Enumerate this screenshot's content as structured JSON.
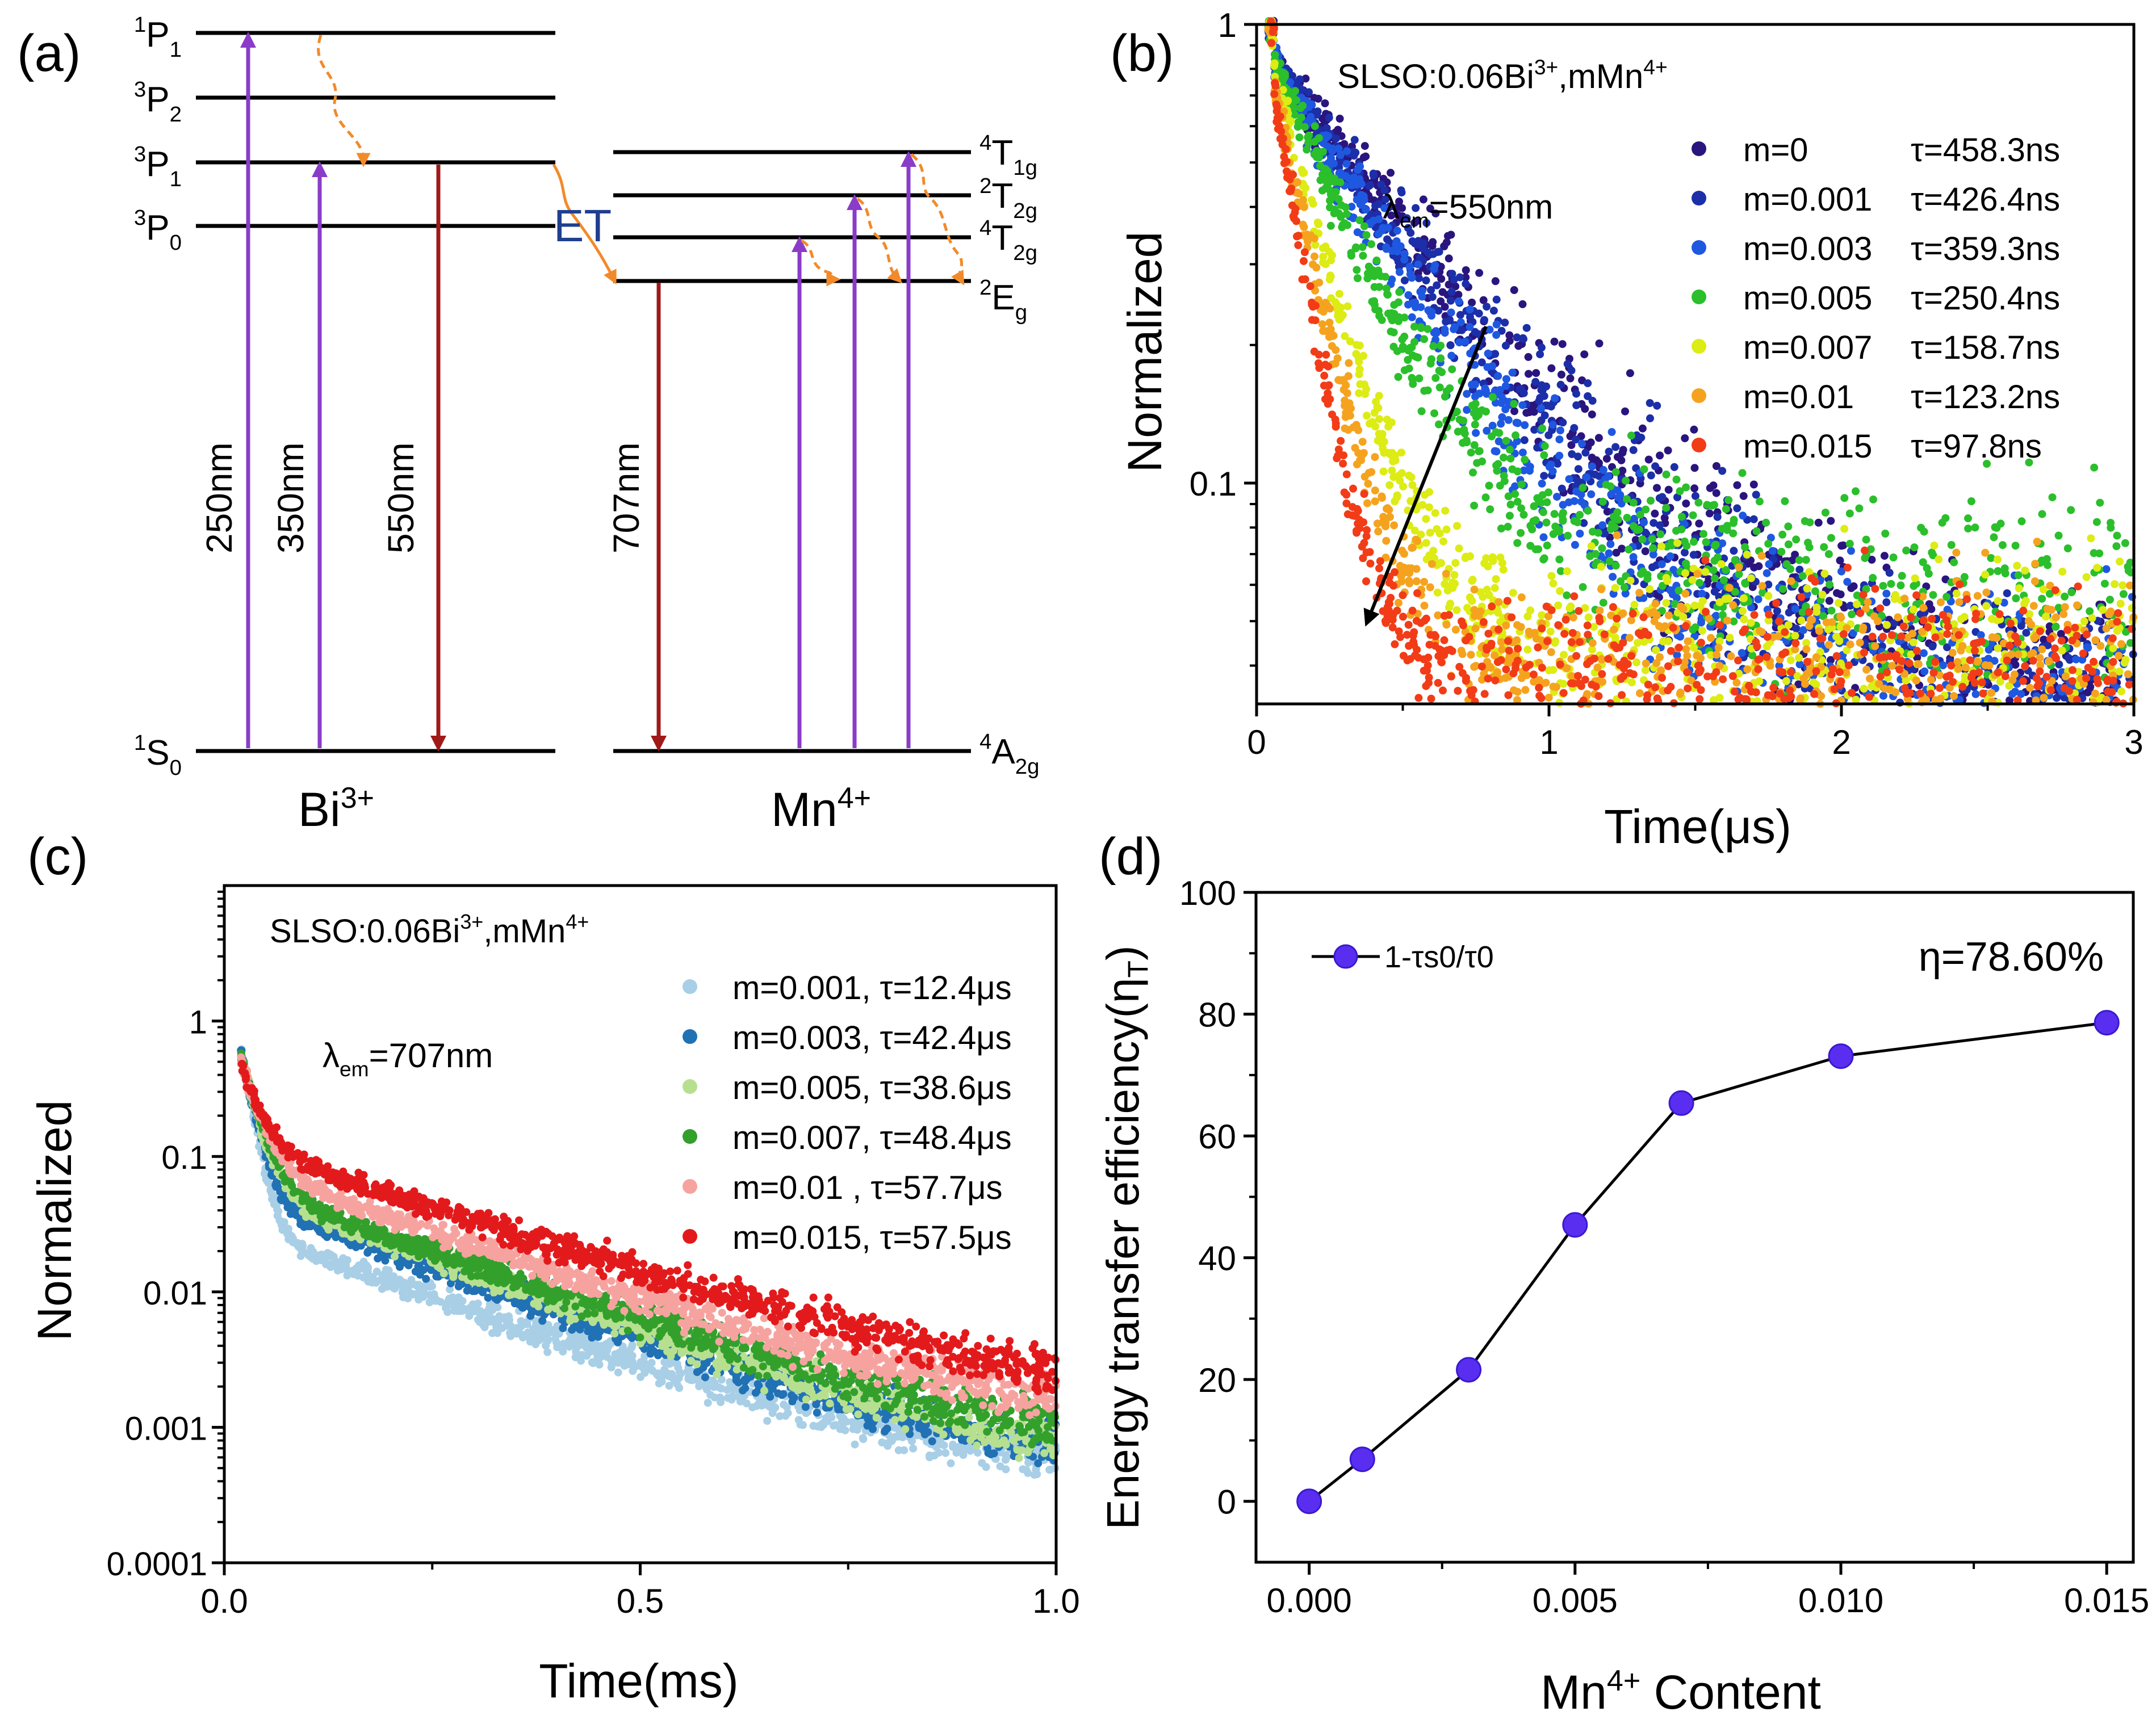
{
  "panel_a": {
    "label": "(a)",
    "bi_levels": [
      {
        "base": "P",
        "sup": "1",
        "sub": "1"
      },
      {
        "base": "P",
        "sup": "3",
        "sub": "2"
      },
      {
        "base": "P",
        "sup": "3",
        "sub": "1"
      },
      {
        "base": "P",
        "sup": "3",
        "sub": "0"
      },
      {
        "base": "S",
        "sup": "1",
        "sub": "0"
      }
    ],
    "mn_levels": [
      {
        "base": "T",
        "sup": "4",
        "sub": "1g"
      },
      {
        "base": "T",
        "sup": "2",
        "sub": "2g"
      },
      {
        "base": "T",
        "sup": "4",
        "sub": "2g"
      },
      {
        "base": "E",
        "sup": "2",
        "sub": "g"
      },
      {
        "base": "A",
        "sup": "4",
        "sub": "2g"
      }
    ],
    "transitions": [
      "250nm",
      "350nm",
      "550nm",
      "707nm"
    ],
    "et_label": "ET",
    "bi_ion": {
      "base": "Bi",
      "sup": "3+"
    },
    "mn_ion": {
      "base": "Mn",
      "sup": "4+"
    },
    "colors": {
      "excitation": "#8a3cc8",
      "emission": "#a01a1a",
      "relax": "#f28a2a",
      "et": "#1f3f8f"
    }
  },
  "chart_data": [
    {
      "panel": "(b)",
      "type": "scatter",
      "title": "SLSO:0.06Bi3+,mMn4+",
      "title_parts": {
        "a": "SLSO:0.06Bi",
        "a_sup": "3+",
        "b": ",mMn",
        "b_sup": "4+"
      },
      "annotation": {
        "prefix": "λ",
        "sub": "em",
        "suffix": "=550nm"
      },
      "xlabel": "Time(μs)",
      "ylabel": "Normalized",
      "xlim": [
        0,
        3
      ],
      "ylim": [
        0.033,
        1
      ],
      "yscale": "log",
      "xticks": [
        "0",
        "1",
        "2",
        "3"
      ],
      "yticks": [
        "1",
        "0.1"
      ],
      "series": [
        {
          "name": "m=0",
          "tau_label": "τ=458.3ns",
          "tau_ns": 458.3,
          "color": "#2a157f"
        },
        {
          "name": "m=0.001",
          "tau_label": "τ=426.4ns",
          "tau_ns": 426.4,
          "color": "#1c2fa8"
        },
        {
          "name": "m=0.003",
          "tau_label": "τ=359.3ns",
          "tau_ns": 359.3,
          "color": "#1f58e0"
        },
        {
          "name": "m=0.005",
          "tau_label": "τ=250.4ns",
          "tau_ns": 250.4,
          "color": "#2bbf2b"
        },
        {
          "name": "m=0.007",
          "tau_label": "τ=158.7ns",
          "tau_ns": 158.7,
          "color": "#dcec14"
        },
        {
          "name": "m=0.01",
          "tau_label": "τ=123.2ns",
          "tau_ns": 123.2,
          "color": "#f5a31e"
        },
        {
          "name": "m=0.015",
          "tau_label": "τ=97.8ns",
          "tau_ns": 97.8,
          "color": "#f23c17"
        }
      ]
    },
    {
      "panel": "(c)",
      "type": "scatter",
      "title": "SLSO:0.06Bi3+,mMn4+",
      "title_parts": {
        "a": "SLSO:0.06Bi",
        "a_sup": "3+",
        "b": ",mMn",
        "b_sup": "4+"
      },
      "annotation": {
        "prefix": "λ",
        "sub": "em",
        "suffix": "=707nm"
      },
      "xlabel": "Time(ms)",
      "ylabel": "Normalized",
      "xlim": [
        0,
        1
      ],
      "ylim": [
        0.0001,
        10
      ],
      "yscale": "log",
      "xticks": [
        "0.0",
        "0.5",
        "1.0"
      ],
      "yticks": [
        "1",
        "0.1",
        "0.01",
        "0.001",
        "0.0001"
      ],
      "series": [
        {
          "name": "m=0.001, τ=12.4μs",
          "tau_us": 12.4,
          "color": "#a8cfe6"
        },
        {
          "name": "m=0.003, τ=42.4μs",
          "tau_us": 42.4,
          "color": "#2171b5"
        },
        {
          "name": "m=0.005, τ=38.6μs",
          "tau_us": 38.6,
          "color": "#b6e08f"
        },
        {
          "name": "m=0.007, τ=48.4μs",
          "tau_us": 48.4,
          "color": "#33a02c"
        },
        {
          "name": "m=0.01  , τ=57.7μs",
          "tau_us": 57.7,
          "color": "#f6a3a0"
        },
        {
          "name": "m=0.015, τ=57.5μs",
          "tau_us": 57.5,
          "color": "#e31a1c"
        }
      ]
    },
    {
      "panel": "(d)",
      "type": "line",
      "xlabel": "Mn4+ Content",
      "xlabel_parts": {
        "a": "Mn",
        "sup": "4+",
        "b": " Content"
      },
      "ylabel": "Energy transfer efficiency(ηT)",
      "ylabel_parts": {
        "a": "Energy transfer efficiency(η",
        "sub": "T",
        "b": ")"
      },
      "legend": "1-τs0/τ0",
      "annotation": "η=78.60%",
      "x": [
        0,
        0.001,
        0.003,
        0.005,
        0.007,
        0.01,
        0.015
      ],
      "y": [
        0,
        6.9,
        21.6,
        45.4,
        65.4,
        73.1,
        78.6
      ],
      "xlim": [
        -0.001,
        0.0155
      ],
      "ylim": [
        -10,
        100
      ],
      "xticks": [
        "0.000",
        "0.005",
        "0.010",
        "0.015"
      ],
      "yticks": [
        "0",
        "20",
        "40",
        "60",
        "80",
        "100"
      ],
      "marker_color": "#5a2ef0"
    }
  ]
}
